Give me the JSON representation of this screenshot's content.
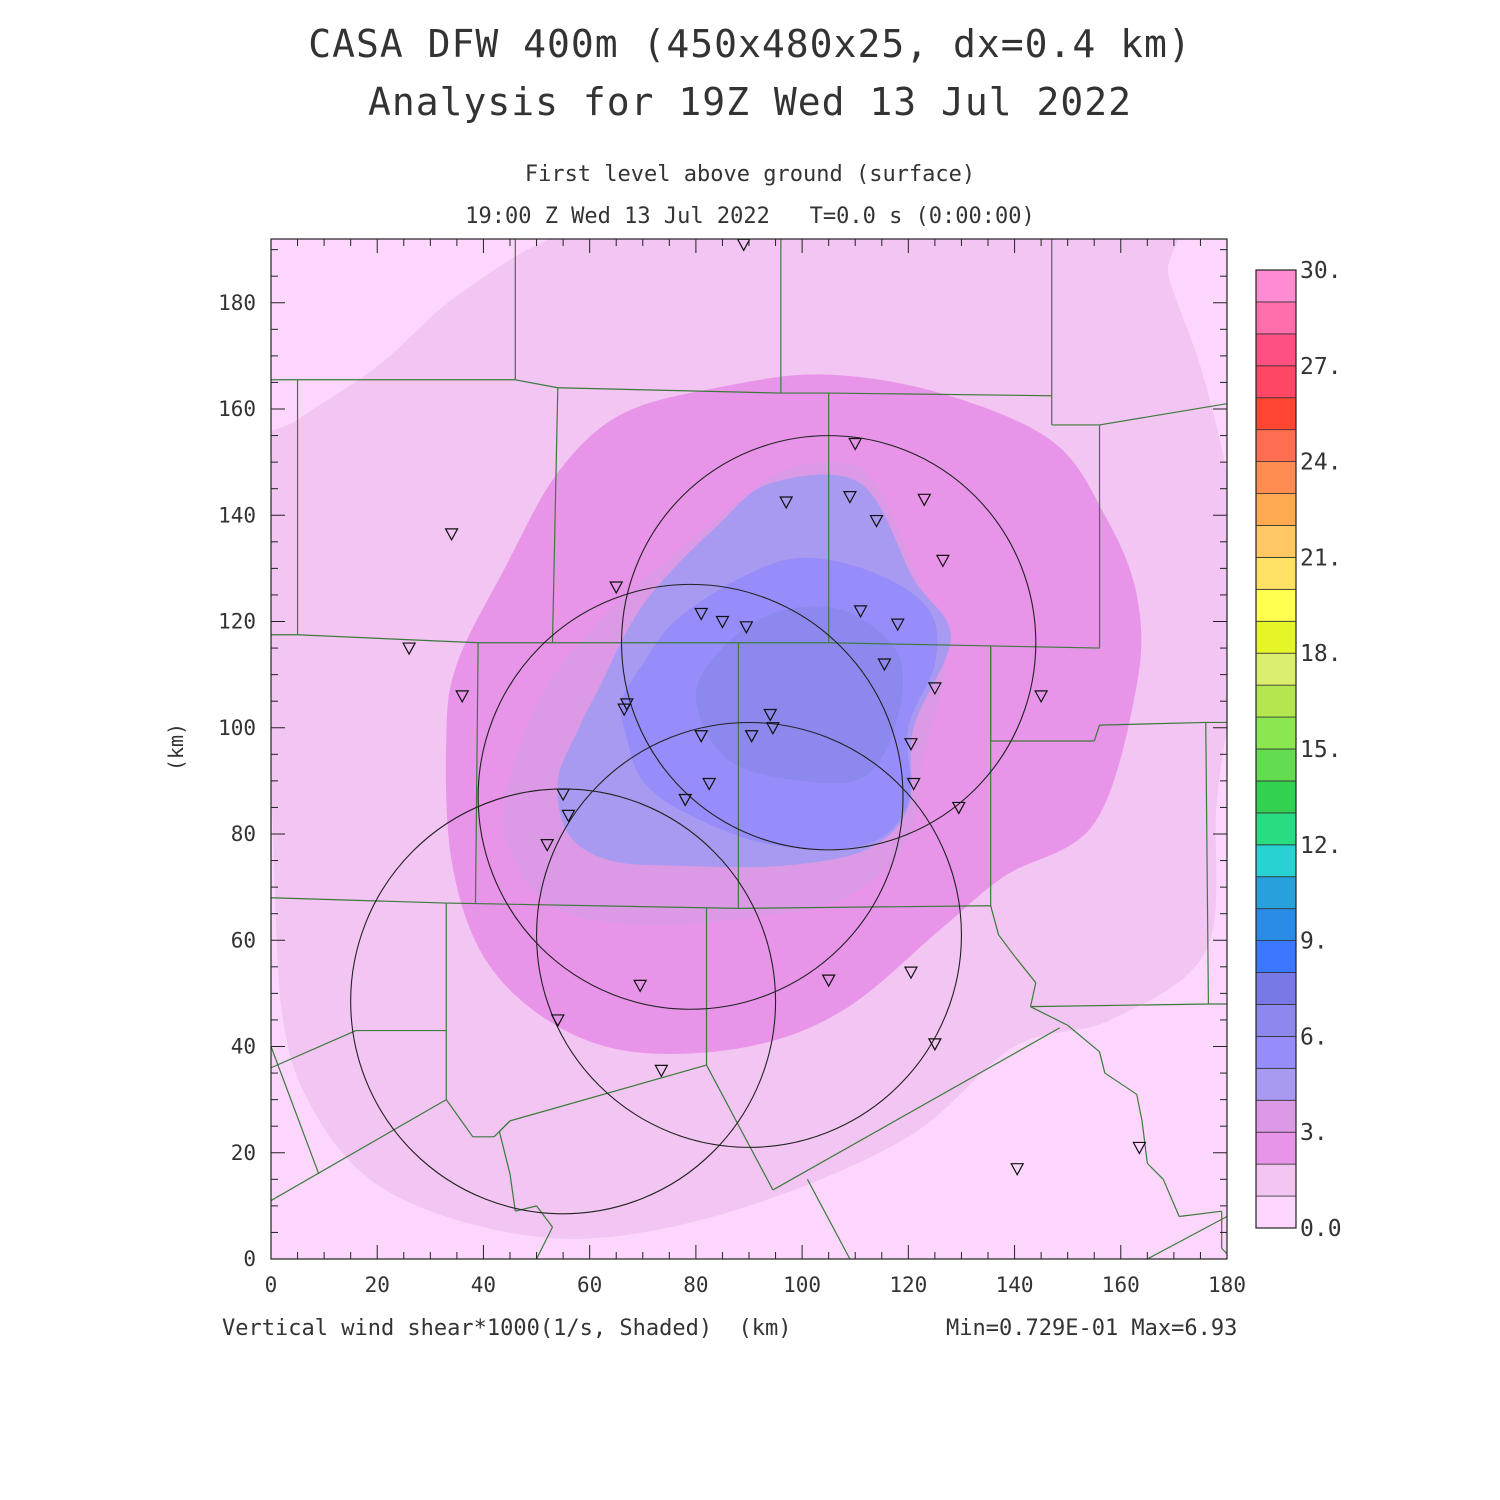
{
  "titles": {
    "line1": "CASA DFW 400m (450x480x25, dx=0.4 km)",
    "line2": "Analysis for 19Z Wed 13 Jul 2022",
    "line3": "First level above ground (surface)",
    "line4": "19:00 Z Wed 13 Jul 2022   T=0.0 s (0:00:00)"
  },
  "axes": {
    "x_ticks": [
      "0",
      "20",
      "40",
      "60",
      "80",
      "100",
      "120",
      "140",
      "160",
      "180"
    ],
    "y_ticks": [
      "0",
      "20",
      "40",
      "60",
      "80",
      "100",
      "120",
      "140",
      "160",
      "180"
    ],
    "x_range": [
      0,
      180
    ],
    "y_range": [
      0,
      192
    ],
    "ylabel": "(km)"
  },
  "footer": {
    "field": "Vertical wind shear*1000(1/s, Shaded)  (km)",
    "minmax": "Min=0.729E-01 Max=6.93"
  },
  "colorbar": {
    "labels": [
      "0.0",
      "3.",
      "6.",
      "9.",
      "12.",
      "15.",
      "18.",
      "21.",
      "24.",
      "27.",
      "30."
    ],
    "colors": [
      "#fcd6fc",
      "#f2c5f2",
      "#e894e8",
      "#dc9ae6",
      "#a89af0",
      "#968cfa",
      "#8c88ee",
      "#7878e6",
      "#3c78ff",
      "#2a8ce6",
      "#28a0dc",
      "#28d2d2",
      "#28dc82",
      "#32d250",
      "#64dc50",
      "#8ce650",
      "#b4e650",
      "#dcee6e",
      "#e6f528",
      "#ffff50",
      "#ffe164",
      "#ffc864",
      "#ffaa50",
      "#ff8c50",
      "#ff6e50",
      "#ff4632",
      "#ff4664",
      "#ff5082",
      "#ff6eaa",
      "#ff8cd2"
    ]
  },
  "map": {
    "colors": {
      "l0": "#fcd6fc",
      "l1": "#f2c5f2",
      "l2": "#e894e8",
      "l3": "#dc9ae6",
      "l4": "#a89af0",
      "l5": "#968cfa",
      "l6": "#8c88ee",
      "county": "#3c7a3c",
      "ring": "#222222"
    },
    "radar_rings": [
      {
        "cx": 105,
        "cy": 116,
        "r": 39
      },
      {
        "cx": 79,
        "cy": 87,
        "r": 40
      },
      {
        "cx": 90,
        "cy": 61,
        "r": 40
      },
      {
        "cx": 55,
        "cy": 48.5,
        "r": 40
      }
    ],
    "stations": [
      [
        89,
        191
      ],
      [
        110,
        153.5
      ],
      [
        97,
        142.5
      ],
      [
        109,
        143.5
      ],
      [
        123,
        143
      ],
      [
        114,
        139
      ],
      [
        126.5,
        131.5
      ],
      [
        34,
        136.5
      ],
      [
        65,
        126.5
      ],
      [
        111,
        122
      ],
      [
        81,
        121.5
      ],
      [
        85,
        120
      ],
      [
        89.5,
        119
      ],
      [
        118,
        119.5
      ],
      [
        115.5,
        112
      ],
      [
        26,
        115
      ],
      [
        36,
        106
      ],
      [
        67,
        104.5
      ],
      [
        66.5,
        103.5
      ],
      [
        125,
        107.5
      ],
      [
        145,
        106
      ],
      [
        94,
        102.5
      ],
      [
        94.5,
        100
      ],
      [
        81,
        98.5
      ],
      [
        90.5,
        98.5
      ],
      [
        120.5,
        97
      ],
      [
        82.5,
        89.5
      ],
      [
        121,
        89.5
      ],
      [
        55,
        87.5
      ],
      [
        78,
        86.5
      ],
      [
        56,
        83.5
      ],
      [
        129.5,
        85
      ],
      [
        52,
        78
      ],
      [
        69.5,
        51.5
      ],
      [
        105,
        52.5
      ],
      [
        120.5,
        54
      ],
      [
        54,
        45
      ],
      [
        125,
        40.5
      ],
      [
        73.5,
        35.5
      ],
      [
        163.5,
        21
      ],
      [
        140.5,
        17
      ]
    ],
    "counties": [
      [
        [
          0,
          165.5
        ],
        [
          5,
          165.5
        ]
      ],
      [
        [
          5,
          165.5
        ],
        [
          5,
          117.5
        ]
      ],
      [
        [
          5,
          165.5
        ],
        [
          46,
          165.5
        ]
      ],
      [
        [
          46,
          192
        ],
        [
          46,
          165.5
        ]
      ],
      [
        [
          46,
          165.5
        ],
        [
          54,
          164
        ]
      ],
      [
        [
          54,
          164
        ],
        [
          96,
          163
        ]
      ],
      [
        [
          96,
          192
        ],
        [
          96,
          163
        ]
      ],
      [
        [
          96,
          163
        ],
        [
          105,
          163
        ]
      ],
      [
        [
          105,
          163
        ],
        [
          147,
          162.5
        ]
      ],
      [
        [
          147,
          192
        ],
        [
          147,
          162.5
        ]
      ],
      [
        [
          147,
          162.5
        ],
        [
          147,
          157
        ]
      ],
      [
        [
          147,
          157
        ],
        [
          156,
          157
        ]
      ],
      [
        [
          156,
          157
        ],
        [
          180,
          161
        ]
      ],
      [
        [
          54,
          164
        ],
        [
          53,
          116
        ]
      ],
      [
        [
          105,
          163
        ],
        [
          105,
          116
        ]
      ],
      [
        [
          156,
          157
        ],
        [
          156,
          115
        ]
      ],
      [
        [
          0,
          117.5
        ],
        [
          5,
          117.5
        ]
      ],
      [
        [
          5,
          117.5
        ],
        [
          39,
          116
        ]
      ],
      [
        [
          39,
          116
        ],
        [
          105,
          116
        ]
      ],
      [
        [
          105,
          116
        ],
        [
          156,
          115
        ]
      ],
      [
        [
          39,
          116
        ],
        [
          38.5,
          67
        ]
      ],
      [
        [
          88,
          116
        ],
        [
          88,
          66
        ]
      ],
      [
        [
          135.5,
          115.5
        ],
        [
          135.5,
          97.5
        ]
      ],
      [
        [
          135.5,
          97.5
        ],
        [
          155,
          97.5
        ]
      ],
      [
        [
          155,
          97.5
        ],
        [
          156,
          100.5
        ]
      ],
      [
        [
          156,
          100.5
        ],
        [
          176,
          101
        ]
      ],
      [
        [
          176,
          101
        ],
        [
          180,
          101
        ]
      ],
      [
        [
          176,
          101
        ],
        [
          176.5,
          48
        ]
      ],
      [
        [
          0,
          68
        ],
        [
          33,
          67
        ]
      ],
      [
        [
          33,
          67
        ],
        [
          88,
          66
        ]
      ],
      [
        [
          88,
          66
        ],
        [
          135.5,
          66.5
        ]
      ],
      [
        [
          135.5,
          115.5
        ],
        [
          135.5,
          66.5
        ]
      ],
      [
        [
          33,
          67
        ],
        [
          33,
          43
        ]
      ],
      [
        [
          33,
          43
        ],
        [
          16,
          43
        ]
      ],
      [
        [
          16,
          43
        ],
        [
          0,
          36
        ]
      ],
      [
        [
          0,
          40
        ],
        [
          9,
          16
        ]
      ],
      [
        [
          33,
          43
        ],
        [
          33,
          30
        ]
      ],
      [
        [
          33,
          30
        ],
        [
          0,
          11
        ]
      ],
      [
        [
          33,
          30
        ],
        [
          38,
          23
        ]
      ],
      [
        [
          38,
          23
        ],
        [
          42,
          23
        ]
      ],
      [
        [
          42,
          23
        ],
        [
          45,
          26
        ]
      ],
      [
        [
          45,
          26
        ],
        [
          82,
          36.5
        ]
      ],
      [
        [
          82,
          36.5
        ],
        [
          82,
          66
        ]
      ],
      [
        [
          82,
          36.5
        ],
        [
          94.5,
          13
        ]
      ],
      [
        [
          94.5,
          13
        ],
        [
          148.5,
          43.5
        ]
      ],
      [
        [
          45,
          26
        ],
        [
          43,
          24
        ]
      ],
      [
        [
          43,
          24
        ],
        [
          45,
          16
        ]
      ],
      [
        [
          45,
          16
        ],
        [
          46,
          9
        ]
      ],
      [
        [
          46,
          9
        ],
        [
          50,
          10
        ]
      ],
      [
        [
          50,
          10
        ],
        [
          53,
          6
        ]
      ],
      [
        [
          53,
          6
        ],
        [
          50,
          0
        ]
      ],
      [
        [
          135.5,
          66.5
        ],
        [
          137,
          61
        ]
      ],
      [
        [
          137,
          61
        ],
        [
          140,
          57
        ]
      ],
      [
        [
          140,
          57
        ],
        [
          144,
          52
        ]
      ],
      [
        [
          144,
          52
        ],
        [
          143,
          47.5
        ]
      ],
      [
        [
          143,
          47.5
        ],
        [
          150,
          44
        ]
      ],
      [
        [
          150,
          44
        ],
        [
          156,
          39
        ]
      ],
      [
        [
          156,
          39
        ],
        [
          157,
          35
        ]
      ],
      [
        [
          157,
          35
        ],
        [
          163,
          31
        ]
      ],
      [
        [
          163,
          31
        ],
        [
          164,
          26
        ]
      ],
      [
        [
          164,
          26
        ],
        [
          165,
          18
        ]
      ],
      [
        [
          165,
          18
        ],
        [
          168,
          15
        ]
      ],
      [
        [
          168,
          15
        ],
        [
          171,
          8
        ]
      ],
      [
        [
          171,
          8
        ],
        [
          179,
          9
        ]
      ],
      [
        [
          143,
          47.5
        ],
        [
          176.5,
          48
        ]
      ],
      [
        [
          176.5,
          48
        ],
        [
          180,
          48
        ]
      ],
      [
        [
          101,
          15
        ],
        [
          109,
          0
        ]
      ],
      [
        [
          165,
          0
        ],
        [
          180,
          8
        ]
      ],
      [
        [
          179,
          9
        ],
        [
          179,
          2
        ]
      ],
      [
        [
          179,
          2
        ],
        [
          180,
          1
        ]
      ]
    ],
    "contours": {
      "l1": [
        [
          -5,
          150
        ],
        [
          -3,
          115
        ],
        [
          0,
          88
        ],
        [
          2,
          47
        ],
        [
          8,
          28
        ],
        [
          20,
          14
        ],
        [
          40,
          6
        ],
        [
          62,
          4
        ],
        [
          90,
          10
        ],
        [
          120,
          23
        ],
        [
          140,
          40
        ],
        [
          158,
          45
        ],
        [
          176,
          58
        ],
        [
          178,
          85
        ],
        [
          180,
          100
        ],
        [
          184,
          125
        ],
        [
          180,
          148
        ],
        [
          175,
          168
        ],
        [
          169,
          185
        ],
        [
          166,
          200
        ],
        [
          95,
          200
        ],
        [
          58,
          194
        ],
        [
          36,
          182
        ],
        [
          20,
          168
        ],
        [
          5,
          158
        ]
      ],
      "l2": [
        [
          33,
          98
        ],
        [
          34,
          75
        ],
        [
          40,
          57
        ],
        [
          52,
          45
        ],
        [
          68,
          39
        ],
        [
          90,
          40
        ],
        [
          108,
          47
        ],
        [
          126,
          62
        ],
        [
          138,
          72
        ],
        [
          155,
          82
        ],
        [
          163,
          108
        ],
        [
          163,
          125
        ],
        [
          157,
          140
        ],
        [
          147,
          154
        ],
        [
          126,
          163
        ],
        [
          104,
          166.5
        ],
        [
          84,
          164
        ],
        [
          66,
          159
        ],
        [
          54,
          148
        ],
        [
          44,
          130
        ],
        [
          35,
          112
        ]
      ],
      "l3": [
        [
          46,
          94
        ],
        [
          44,
          80
        ],
        [
          52,
          67
        ],
        [
          68,
          63
        ],
        [
          88,
          64
        ],
        [
          108,
          68
        ],
        [
          120,
          79
        ],
        [
          123,
          95
        ],
        [
          127,
          113
        ],
        [
          121,
          130
        ],
        [
          112,
          148
        ],
        [
          98,
          149
        ],
        [
          86,
          141
        ],
        [
          74,
          131
        ],
        [
          68,
          126
        ],
        [
          60,
          118
        ],
        [
          52,
          108
        ]
      ],
      "l4": [
        [
          54,
          90
        ],
        [
          56,
          80
        ],
        [
          64,
          75
        ],
        [
          78,
          74
        ],
        [
          96,
          74
        ],
        [
          112,
          77
        ],
        [
          120,
          85
        ],
        [
          121,
          100
        ],
        [
          128,
          117
        ],
        [
          121,
          128
        ],
        [
          111,
          146
        ],
        [
          94,
          146
        ],
        [
          84,
          138
        ],
        [
          74,
          128
        ],
        [
          68,
          120
        ],
        [
          62,
          108
        ],
        [
          58,
          100
        ]
      ],
      "l5": [
        [
          67,
          98
        ],
        [
          70,
          90
        ],
        [
          78,
          84
        ],
        [
          94,
          78
        ],
        [
          112,
          78
        ],
        [
          120,
          86
        ],
        [
          120,
          100
        ],
        [
          125,
          112
        ],
        [
          124,
          122
        ],
        [
          114,
          129
        ],
        [
          100,
          132
        ],
        [
          88,
          128
        ],
        [
          76,
          120
        ],
        [
          70,
          112
        ],
        [
          66,
          105
        ]
      ],
      "l6": [
        [
          80,
          106
        ],
        [
          86,
          94
        ],
        [
          100,
          90
        ],
        [
          112,
          91
        ],
        [
          118,
          102
        ],
        [
          118,
          114
        ],
        [
          108,
          122
        ],
        [
          96,
          122
        ],
        [
          86,
          116
        ]
      ]
    }
  }
}
